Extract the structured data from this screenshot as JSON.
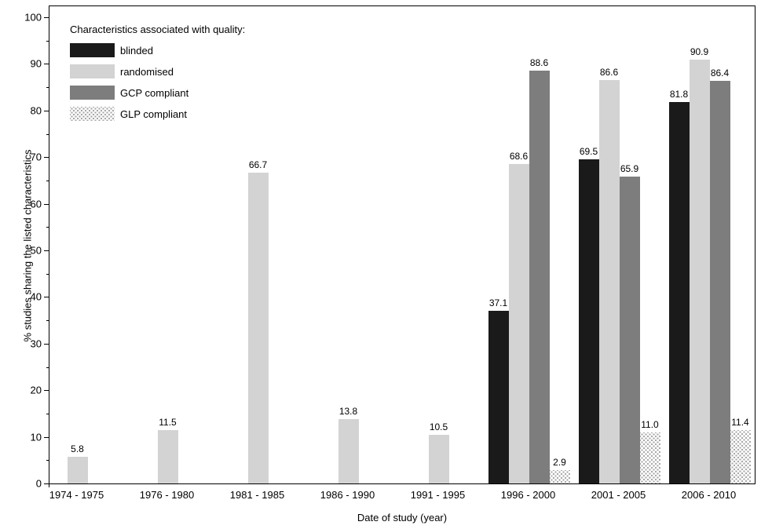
{
  "chart_data": {
    "type": "bar",
    "title": "",
    "legend_title": "Characteristics associated with quality:",
    "xlabel": "Date of study (year)",
    "ylabel": "% studies sharing the listed characteristics",
    "ylim": [
      0,
      100
    ],
    "ytick_major_step": 10,
    "ytick_minor_step": 5,
    "grid": false,
    "legend_position": "top-left-inside",
    "value_label_decimals": 1,
    "categories": [
      "1974 - 1975",
      "1976 - 1980",
      "1981 - 1985",
      "1986 - 1990",
      "1991 - 1995",
      "1996 - 2000",
      "2001 - 2005",
      "2006 - 2010"
    ],
    "series": [
      {
        "name": "blinded",
        "color": "#1a1a1a",
        "pattern": "solid",
        "values": [
          null,
          null,
          null,
          null,
          null,
          37.1,
          69.5,
          81.8
        ]
      },
      {
        "name": "randomised",
        "color": "#d3d3d3",
        "pattern": "solid",
        "values": [
          5.8,
          11.5,
          66.7,
          13.8,
          10.5,
          68.6,
          86.6,
          90.9
        ]
      },
      {
        "name": "GCP compliant",
        "color": "#7d7d7d",
        "pattern": "solid",
        "values": [
          null,
          null,
          null,
          null,
          null,
          88.6,
          65.9,
          86.4
        ]
      },
      {
        "name": "GLP compliant",
        "color": "#a8a8a8",
        "pattern": "stipple",
        "values": [
          null,
          null,
          null,
          null,
          null,
          2.9,
          11.0,
          11.4
        ]
      }
    ],
    "ytick_labels": [
      "0",
      "10",
      "20",
      "30",
      "40",
      "50",
      "60",
      "70",
      "80",
      "90",
      "100"
    ]
  }
}
